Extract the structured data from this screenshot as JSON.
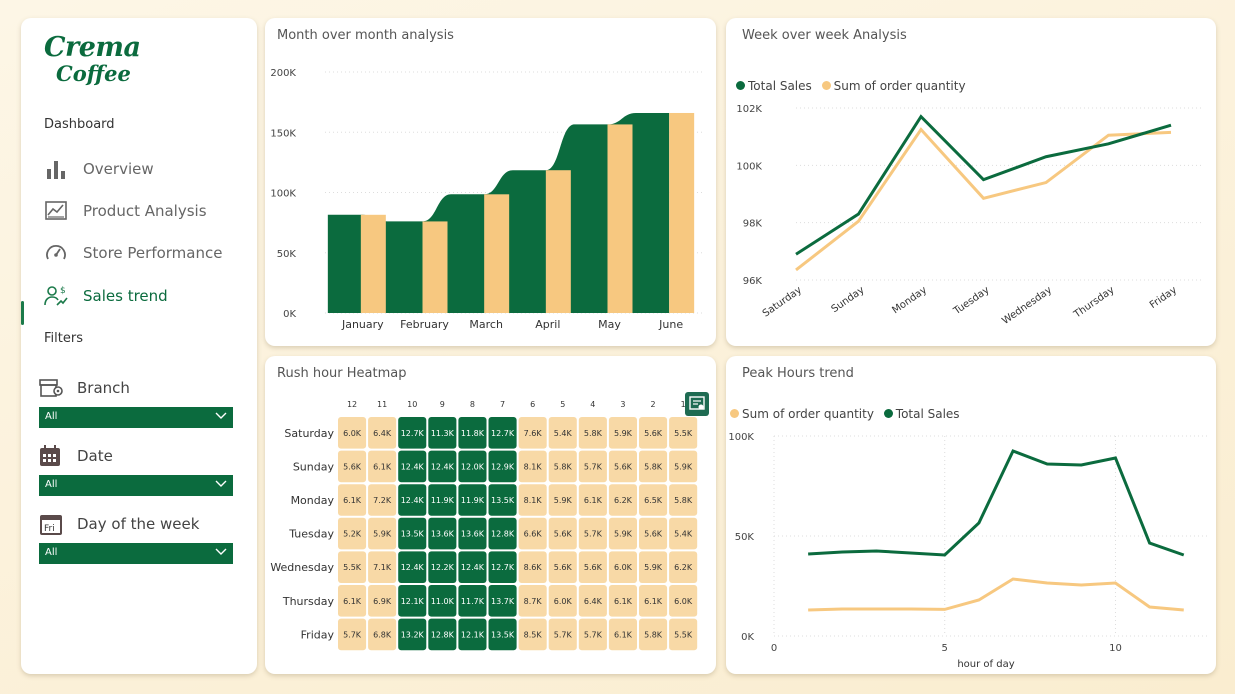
{
  "brand": {
    "line1": "Crema",
    "line2": "Coffee"
  },
  "sidebar": {
    "dashboard_title": "Dashboard",
    "items": [
      {
        "label": "Overview",
        "icon": "bar-chart-icon",
        "active": false
      },
      {
        "label": "Product Analysis",
        "icon": "chart-image-icon",
        "active": false
      },
      {
        "label": "Store Performance",
        "icon": "gauge-icon",
        "active": false
      },
      {
        "label": "Sales trend",
        "icon": "user-trend-icon",
        "active": true
      }
    ],
    "filters_title": "Filters",
    "filters": [
      {
        "label": "Branch",
        "value": "All",
        "icon": "store-location-icon"
      },
      {
        "label": "Date",
        "value": "All",
        "icon": "calendar-icon"
      },
      {
        "label": "Day of the week",
        "value": "All",
        "icon": "calendar-fri-icon",
        "icon_text": "Fri"
      }
    ]
  },
  "colors": {
    "green": "#0b6b3e",
    "sand": "#f7c880",
    "sand_cell": "#f8d9a6"
  },
  "charts": {
    "mom": {
      "title": "Month over month analysis",
      "chart_data": {
        "type": "bar",
        "categories": [
          "January",
          "February",
          "March",
          "April",
          "May",
          "June"
        ],
        "series": [
          {
            "name": "",
            "values": [
              81500,
              76000,
              98500,
              118500,
              156500,
              166000
            ]
          },
          {
            "name": "",
            "values": [
              81500,
              76000,
              98500,
              118500,
              156500,
              166000
            ]
          }
        ],
        "yticks": [
          "0K",
          "50K",
          "100K",
          "150K",
          "200K"
        ],
        "ylim": [
          0,
          200000
        ]
      }
    },
    "wow": {
      "title": "Week over week Analysis",
      "chart_data": {
        "type": "line",
        "categories": [
          "Saturday",
          "Sunday",
          "Monday",
          "Tuesday",
          "Wednesday",
          "Thursday",
          "Friday"
        ],
        "series": [
          {
            "name": "Total Sales",
            "values": [
              96900,
              98300,
              101700,
              99500,
              100300,
              100750,
              101400
            ]
          },
          {
            "name": "Sum of order quantity",
            "values": [
              96350,
              98050,
              101250,
              98850,
              99400,
              101050,
              101150
            ]
          }
        ],
        "yticks": [
          "96K",
          "98K",
          "100K",
          "102K"
        ],
        "ylim": [
          96000,
          102000
        ],
        "legend": "top-left"
      }
    },
    "heatmap": {
      "title": "Rush hour Heatmap",
      "chart_data": {
        "type": "heatmap",
        "columns": [
          "12",
          "11",
          "10",
          "9",
          "8",
          "7",
          "6",
          "5",
          "4",
          "3",
          "2",
          "1"
        ],
        "rows": [
          "Saturday",
          "Sunday",
          "Monday",
          "Tuesday",
          "Wednesday",
          "Thursday",
          "Friday"
        ],
        "values": [
          [
            "6.0K",
            "6.4K",
            "12.7K",
            "11.3K",
            "11.8K",
            "12.7K",
            "7.6K",
            "5.4K",
            "5.8K",
            "5.9K",
            "5.6K",
            "5.5K"
          ],
          [
            "5.6K",
            "6.1K",
            "12.4K",
            "12.4K",
            "12.0K",
            "12.9K",
            "8.1K",
            "5.8K",
            "5.7K",
            "5.6K",
            "5.8K",
            "5.9K"
          ],
          [
            "6.1K",
            "7.2K",
            "12.4K",
            "11.9K",
            "11.9K",
            "13.5K",
            "8.1K",
            "5.9K",
            "6.1K",
            "6.2K",
            "6.5K",
            "5.8K"
          ],
          [
            "5.2K",
            "5.9K",
            "13.5K",
            "13.6K",
            "13.6K",
            "12.8K",
            "6.6K",
            "5.6K",
            "5.7K",
            "5.9K",
            "5.6K",
            "5.4K"
          ],
          [
            "5.5K",
            "7.1K",
            "12.4K",
            "12.2K",
            "12.4K",
            "12.7K",
            "8.6K",
            "5.6K",
            "5.6K",
            "6.0K",
            "5.9K",
            "6.2K"
          ],
          [
            "6.1K",
            "6.9K",
            "12.1K",
            "11.0K",
            "11.7K",
            "13.7K",
            "8.7K",
            "6.0K",
            "6.4K",
            "6.1K",
            "6.1K",
            "6.0K"
          ],
          [
            "5.7K",
            "6.8K",
            "13.2K",
            "12.8K",
            "12.1K",
            "13.5K",
            "8.5K",
            "5.7K",
            "5.7K",
            "6.1K",
            "5.8K",
            "5.5K"
          ]
        ]
      }
    },
    "peak": {
      "title": "Peak Hours trend",
      "chart_data": {
        "type": "line",
        "x": [
          1,
          2,
          3,
          4,
          5,
          6,
          7,
          8,
          9,
          10,
          11,
          12
        ],
        "series": [
          {
            "name": "Sum of order quantity",
            "values": [
              13000,
              13500,
              13500,
              13500,
              13300,
              18000,
              28500,
              26500,
              25500,
              26500,
              14500,
              13000
            ]
          },
          {
            "name": "Total Sales",
            "values": [
              41000,
              42000,
              42500,
              41500,
              40500,
              56500,
              92500,
              86000,
              85500,
              89000,
              46500,
              40500
            ]
          }
        ],
        "xticks": [
          "0",
          "5",
          "10"
        ],
        "yticks": [
          "0K",
          "50K",
          "100K"
        ],
        "xlabel": "hour of day",
        "ylim": [
          0,
          100000
        ],
        "legend": "top-left"
      }
    }
  }
}
